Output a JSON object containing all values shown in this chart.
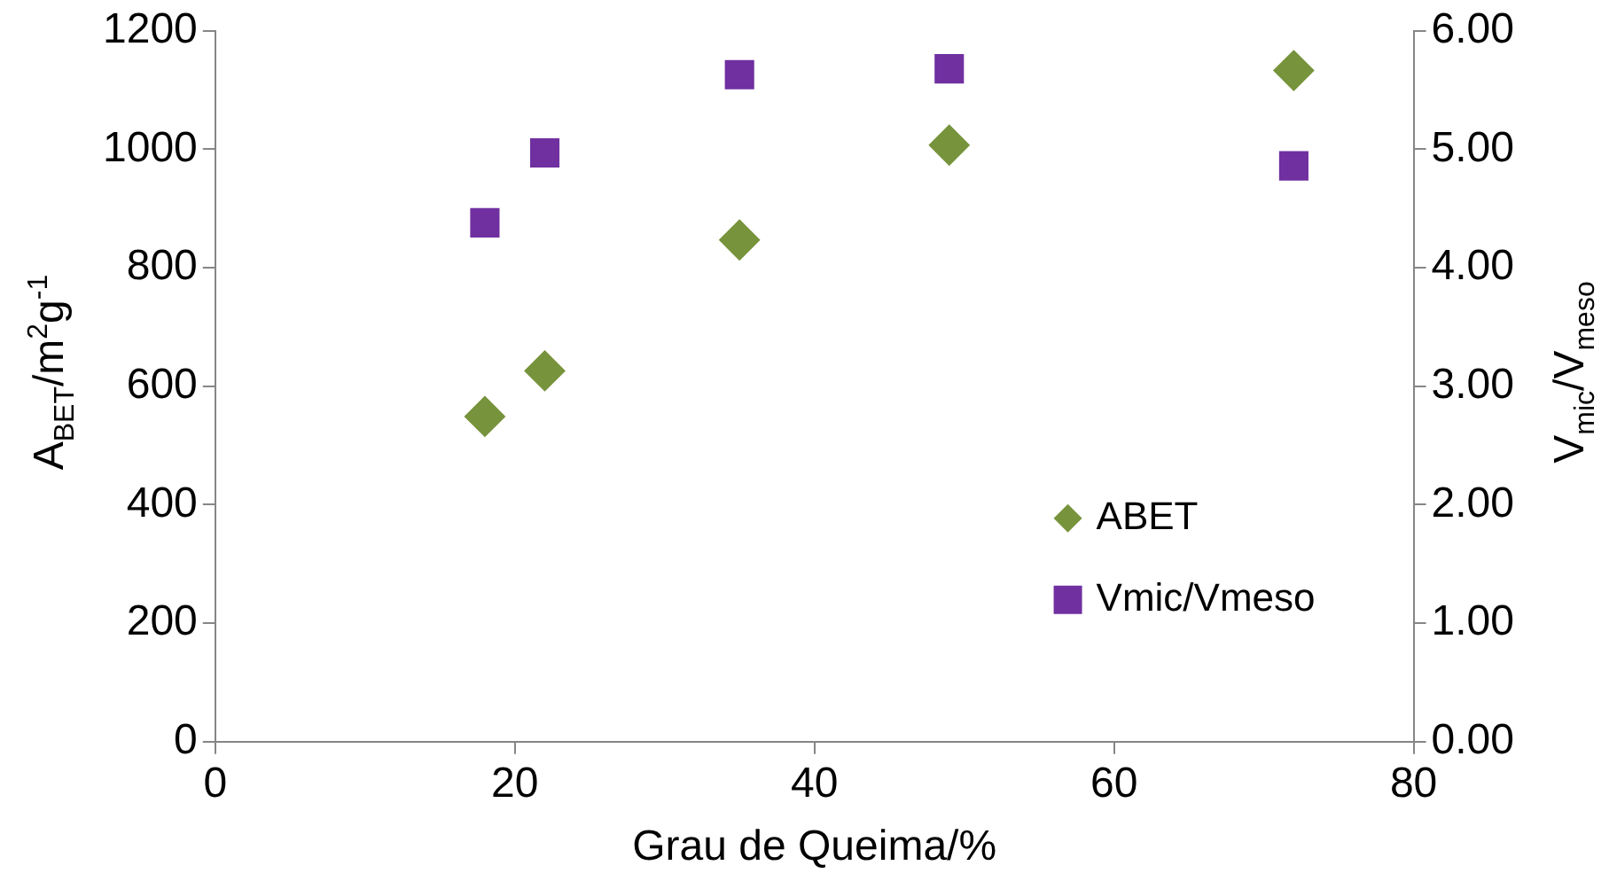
{
  "chart_data": {
    "type": "scatter",
    "xlabel": "Grau de Queima/%",
    "ylabel": "A$_{BET}$/m$^{2}$g$^{-1}$",
    "y2label": "V$_{mic}$/V$_{meso}$",
    "x": [
      18,
      22,
      35,
      49,
      72
    ],
    "series": [
      {
        "name": "ABET",
        "color": "#77933c",
        "marker": "diamond",
        "values": [
          549,
          626,
          847,
          1007,
          1133
        ]
      },
      {
        "name": "Vmic/Vmeso",
        "color": "#7030a0",
        "marker": "square",
        "axis": "y2",
        "values": [
          4.38,
          4.97,
          5.63,
          5.68,
          4.86
        ]
      }
    ],
    "xlim": [
      0,
      80
    ],
    "xticks": [
      0,
      20,
      40,
      60,
      80
    ],
    "ylim": [
      0,
      1200
    ],
    "yticks": [
      0,
      200,
      400,
      600,
      800,
      1000,
      1200
    ],
    "y2lim": [
      0,
      6
    ],
    "y2ticks": [
      {
        "value": 0,
        "label": "0.00"
      },
      {
        "value": 1,
        "label": "1.00"
      },
      {
        "value": 2,
        "label": "2.00"
      },
      {
        "value": 3,
        "label": "3.00"
      },
      {
        "value": 4,
        "label": "4.00"
      },
      {
        "value": 5,
        "label": "5.00"
      },
      {
        "value": 6,
        "label": "6.00"
      }
    ],
    "grid": false,
    "legend": "bottom right"
  }
}
